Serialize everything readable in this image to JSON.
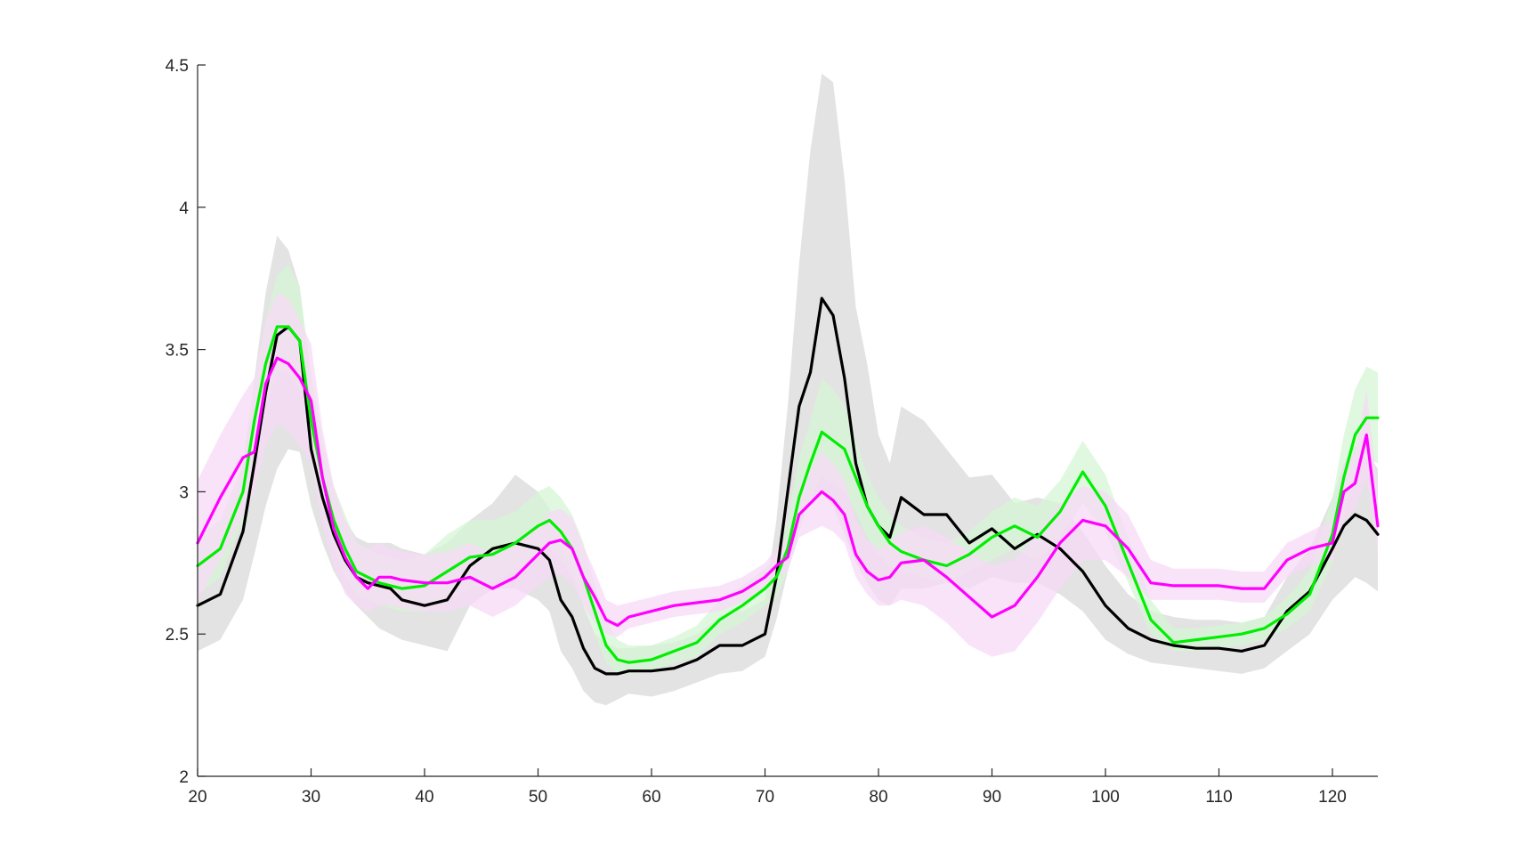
{
  "chart_data": {
    "type": "line",
    "title": "",
    "xlabel": "",
    "ylabel": "",
    "xlim": [
      20,
      124
    ],
    "ylim": [
      2,
      4.5
    ],
    "x_ticks": [
      "20",
      "30",
      "40",
      "50",
      "60",
      "70",
      "80",
      "90",
      "100",
      "110",
      "120"
    ],
    "y_ticks": [
      "2",
      "2.5",
      "3",
      "3.5",
      "4",
      "4.5"
    ],
    "grid": false,
    "legend": "none",
    "x": [
      20,
      22,
      24,
      25,
      26,
      27,
      28,
      29,
      30,
      31,
      32,
      33,
      34,
      35,
      36,
      37,
      38,
      40,
      42,
      44,
      46,
      48,
      50,
      51,
      52,
      53,
      54,
      55,
      56,
      57,
      58,
      60,
      62,
      64,
      66,
      68,
      70,
      71,
      72,
      73,
      74,
      75,
      76,
      77,
      78,
      79,
      80,
      81,
      82,
      84,
      86,
      88,
      90,
      92,
      94,
      96,
      98,
      100,
      102,
      104,
      106,
      108,
      110,
      112,
      114,
      116,
      118,
      120,
      121,
      122,
      123,
      124
    ],
    "series": [
      {
        "color": "#000000",
        "band_color": "#d9d9d9",
        "values": [
          2.6,
          2.64,
          2.86,
          3.1,
          3.35,
          3.55,
          3.58,
          3.53,
          3.15,
          2.98,
          2.85,
          2.76,
          2.7,
          2.68,
          2.67,
          2.66,
          2.62,
          2.6,
          2.62,
          2.74,
          2.8,
          2.82,
          2.8,
          2.76,
          2.62,
          2.56,
          2.45,
          2.38,
          2.36,
          2.36,
          2.37,
          2.37,
          2.38,
          2.41,
          2.46,
          2.46,
          2.5,
          2.7,
          3.0,
          3.3,
          3.42,
          3.68,
          3.62,
          3.4,
          3.1,
          2.95,
          2.88,
          2.84,
          2.98,
          2.92,
          2.92,
          2.82,
          2.87,
          2.8,
          2.85,
          2.8,
          2.72,
          2.6,
          2.52,
          2.48,
          2.46,
          2.45,
          2.45,
          2.44,
          2.46,
          2.58,
          2.65,
          2.8,
          2.88,
          2.92,
          2.9,
          2.85
        ],
        "lower": [
          2.44,
          2.48,
          2.62,
          2.78,
          2.95,
          3.08,
          3.15,
          3.14,
          2.95,
          2.82,
          2.72,
          2.65,
          2.6,
          2.56,
          2.52,
          2.5,
          2.48,
          2.46,
          2.44,
          2.6,
          2.66,
          2.66,
          2.62,
          2.58,
          2.44,
          2.38,
          2.3,
          2.26,
          2.25,
          2.27,
          2.29,
          2.28,
          2.3,
          2.33,
          2.36,
          2.37,
          2.42,
          2.55,
          2.72,
          2.88,
          2.98,
          3.0,
          2.95,
          2.85,
          2.75,
          2.68,
          2.62,
          2.6,
          2.66,
          2.66,
          2.68,
          2.66,
          2.7,
          2.68,
          2.68,
          2.64,
          2.58,
          2.48,
          2.43,
          2.4,
          2.39,
          2.38,
          2.37,
          2.36,
          2.38,
          2.44,
          2.5,
          2.62,
          2.66,
          2.7,
          2.68,
          2.65
        ],
        "upper": [
          2.76,
          2.8,
          3.1,
          3.4,
          3.7,
          3.9,
          3.85,
          3.72,
          3.35,
          3.15,
          3.0,
          2.9,
          2.84,
          2.82,
          2.82,
          2.82,
          2.8,
          2.78,
          2.82,
          2.9,
          2.96,
          3.06,
          3.0,
          2.94,
          2.8,
          2.74,
          2.6,
          2.5,
          2.47,
          2.45,
          2.45,
          2.46,
          2.47,
          2.5,
          2.56,
          2.58,
          2.62,
          2.9,
          3.3,
          3.8,
          4.2,
          4.47,
          4.44,
          4.1,
          3.65,
          3.45,
          3.2,
          3.1,
          3.3,
          3.25,
          3.15,
          3.05,
          3.06,
          2.96,
          2.98,
          2.96,
          2.86,
          2.74,
          2.64,
          2.58,
          2.56,
          2.55,
          2.55,
          2.54,
          2.56,
          2.7,
          2.8,
          2.98,
          3.1,
          3.16,
          3.14,
          3.08
        ]
      },
      {
        "color": "#00ee00",
        "band_color": "#d6f5d6",
        "values": [
          2.74,
          2.8,
          3.0,
          3.25,
          3.45,
          3.58,
          3.58,
          3.53,
          3.25,
          3.05,
          2.9,
          2.8,
          2.72,
          2.7,
          2.68,
          2.67,
          2.66,
          2.67,
          2.72,
          2.77,
          2.78,
          2.82,
          2.88,
          2.9,
          2.86,
          2.8,
          2.7,
          2.58,
          2.46,
          2.41,
          2.4,
          2.41,
          2.44,
          2.47,
          2.55,
          2.6,
          2.66,
          2.7,
          2.8,
          2.98,
          3.1,
          3.21,
          3.18,
          3.15,
          3.05,
          2.95,
          2.88,
          2.82,
          2.79,
          2.76,
          2.74,
          2.78,
          2.84,
          2.88,
          2.84,
          2.93,
          3.07,
          2.95,
          2.75,
          2.55,
          2.47,
          2.48,
          2.49,
          2.5,
          2.52,
          2.57,
          2.64,
          2.85,
          3.05,
          3.2,
          3.26,
          3.26
        ],
        "lower": [
          2.64,
          2.7,
          2.9,
          3.1,
          3.3,
          3.42,
          3.42,
          3.36,
          3.1,
          2.92,
          2.8,
          2.7,
          2.64,
          2.62,
          2.6,
          2.59,
          2.58,
          2.58,
          2.62,
          2.66,
          2.68,
          2.72,
          2.78,
          2.8,
          2.76,
          2.7,
          2.6,
          2.5,
          2.4,
          2.36,
          2.36,
          2.37,
          2.4,
          2.42,
          2.5,
          2.54,
          2.6,
          2.63,
          2.72,
          2.86,
          2.98,
          3.05,
          3.03,
          3.0,
          2.93,
          2.84,
          2.78,
          2.74,
          2.72,
          2.7,
          2.68,
          2.72,
          2.76,
          2.8,
          2.76,
          2.84,
          2.96,
          2.86,
          2.68,
          2.5,
          2.44,
          2.44,
          2.45,
          2.46,
          2.48,
          2.52,
          2.58,
          2.75,
          2.92,
          3.06,
          3.12,
          3.1
        ],
        "upper": [
          2.84,
          2.9,
          3.1,
          3.4,
          3.6,
          3.76,
          3.8,
          3.72,
          3.42,
          3.18,
          3.02,
          2.92,
          2.82,
          2.8,
          2.78,
          2.77,
          2.76,
          2.78,
          2.85,
          2.9,
          2.9,
          2.93,
          3.0,
          3.02,
          2.98,
          2.92,
          2.82,
          2.67,
          2.55,
          2.48,
          2.46,
          2.46,
          2.49,
          2.53,
          2.62,
          2.67,
          2.73,
          2.78,
          2.9,
          3.12,
          3.25,
          3.4,
          3.36,
          3.3,
          3.18,
          3.06,
          2.98,
          2.92,
          2.88,
          2.84,
          2.82,
          2.86,
          2.93,
          2.98,
          2.95,
          3.04,
          3.18,
          3.06,
          2.84,
          2.62,
          2.52,
          2.52,
          2.53,
          2.54,
          2.56,
          2.63,
          2.72,
          2.98,
          3.2,
          3.36,
          3.44,
          3.42
        ]
      },
      {
        "color": "#ff00ff",
        "band_color": "#f7d9f7",
        "values": [
          2.82,
          2.98,
          3.12,
          3.14,
          3.38,
          3.47,
          3.45,
          3.4,
          3.32,
          3.05,
          2.87,
          2.77,
          2.7,
          2.66,
          2.7,
          2.7,
          2.69,
          2.68,
          2.68,
          2.7,
          2.66,
          2.7,
          2.78,
          2.82,
          2.83,
          2.8,
          2.7,
          2.63,
          2.55,
          2.53,
          2.56,
          2.58,
          2.6,
          2.61,
          2.62,
          2.65,
          2.7,
          2.74,
          2.77,
          2.92,
          2.96,
          3.0,
          2.97,
          2.92,
          2.78,
          2.72,
          2.69,
          2.7,
          2.75,
          2.76,
          2.7,
          2.63,
          2.56,
          2.6,
          2.7,
          2.82,
          2.9,
          2.88,
          2.8,
          2.68,
          2.67,
          2.67,
          2.67,
          2.66,
          2.66,
          2.76,
          2.8,
          2.82,
          3.0,
          3.03,
          3.2,
          2.88
        ],
        "lower": [
          2.62,
          2.76,
          2.92,
          3.0,
          3.16,
          3.24,
          3.22,
          3.16,
          3.1,
          2.88,
          2.74,
          2.64,
          2.6,
          2.58,
          2.6,
          2.6,
          2.59,
          2.58,
          2.58,
          2.6,
          2.56,
          2.6,
          2.67,
          2.7,
          2.71,
          2.68,
          2.6,
          2.54,
          2.5,
          2.49,
          2.52,
          2.54,
          2.56,
          2.57,
          2.58,
          2.61,
          2.66,
          2.7,
          2.72,
          2.84,
          2.86,
          2.88,
          2.86,
          2.82,
          2.7,
          2.64,
          2.6,
          2.6,
          2.62,
          2.6,
          2.54,
          2.46,
          2.42,
          2.44,
          2.54,
          2.66,
          2.76,
          2.76,
          2.7,
          2.62,
          2.62,
          2.62,
          2.62,
          2.61,
          2.61,
          2.7,
          2.74,
          2.76,
          2.9,
          2.94,
          3.05,
          2.78
        ],
        "upper": [
          3.04,
          3.2,
          3.34,
          3.4,
          3.6,
          3.7,
          3.68,
          3.6,
          3.52,
          3.22,
          3.02,
          2.9,
          2.82,
          2.8,
          2.82,
          2.8,
          2.79,
          2.78,
          2.79,
          2.82,
          2.78,
          2.82,
          2.88,
          2.93,
          2.94,
          2.91,
          2.81,
          2.72,
          2.62,
          2.6,
          2.61,
          2.63,
          2.65,
          2.66,
          2.67,
          2.7,
          2.75,
          2.8,
          2.84,
          3.02,
          3.08,
          3.14,
          3.1,
          3.04,
          2.9,
          2.83,
          2.8,
          2.82,
          2.86,
          2.88,
          2.84,
          2.79,
          2.74,
          2.76,
          2.86,
          2.96,
          3.02,
          3.0,
          2.92,
          2.76,
          2.73,
          2.73,
          2.73,
          2.72,
          2.72,
          2.82,
          2.86,
          2.9,
          3.1,
          3.14,
          3.36,
          3.0
        ]
      }
    ]
  }
}
